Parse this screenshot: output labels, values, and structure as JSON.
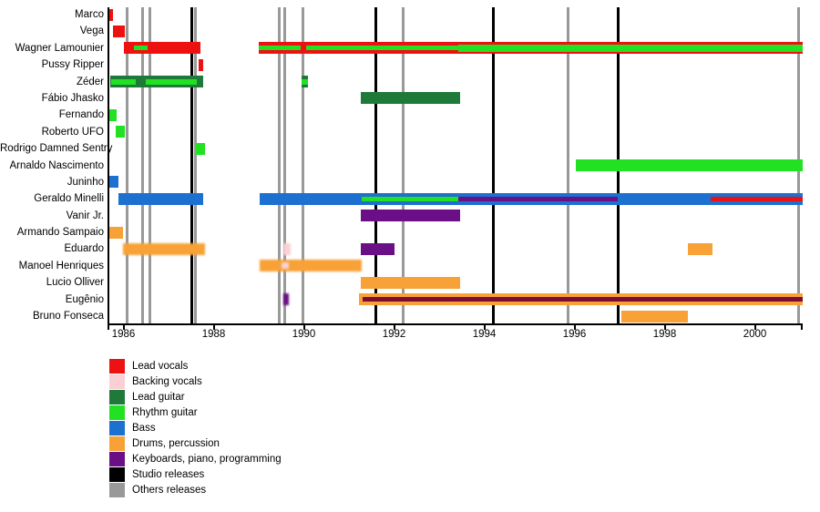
{
  "chart_data": {
    "type": "timeline",
    "x_axis": {
      "tick_years": [
        1986,
        1988,
        1990,
        1992,
        1994,
        1996,
        1998,
        2000
      ],
      "range_start": 1985.67,
      "range_end": 2001.06
    },
    "colors": {
      "red": "#ee1111",
      "pink": "#fbd0d4",
      "green": "#22e022",
      "dgreen": "#1f7a3a",
      "blue": "#1c70d0",
      "orange": "#f7a136",
      "purple": "#6a0f85",
      "maroon": "#7a0c36",
      "studio": "#000000",
      "others": "#999999"
    },
    "legend": [
      {
        "label": "Lead vocals",
        "color": "red"
      },
      {
        "label": "Backing vocals",
        "color": "pink"
      },
      {
        "label": "Lead guitar",
        "color": "dgreen"
      },
      {
        "label": "Rhythm guitar",
        "color": "green"
      },
      {
        "label": "Bass",
        "color": "blue"
      },
      {
        "label": "Drums, percussion",
        "color": "orange"
      },
      {
        "label": "Keyboards, piano, programming",
        "color": "purple"
      },
      {
        "label": "Studio releases",
        "color": "studio"
      },
      {
        "label": "Others releases",
        "color": "others"
      }
    ],
    "releases": {
      "studio": [
        1987.52,
        1991.6,
        1994.2,
        1996.96
      ],
      "others": [
        1986.09,
        1986.43,
        1986.58,
        1987.6,
        1989.45,
        1989.58,
        1989.98,
        1992.2,
        1995.86,
        2000.96
      ]
    },
    "members": [
      {
        "name": "Marco",
        "bars": [
          {
            "start": 1985.67,
            "end": 1985.76,
            "color": "red"
          }
        ]
      },
      {
        "name": "Vega",
        "bars": [
          {
            "start": 1985.77,
            "end": 1986.03,
            "color": "red"
          }
        ]
      },
      {
        "name": "Wagner Lamounier",
        "bars": [
          {
            "start": 1986.0,
            "end": 1987.71,
            "color": "red",
            "stripes": [
              {
                "start": 1986.23,
                "end": 1986.53,
                "color": "green",
                "h": 5
              }
            ]
          },
          {
            "start": 1989.0,
            "end": 2001.06,
            "color": "red",
            "stripes": [
              {
                "start": 1989.0,
                "end": 1989.93,
                "color": "green",
                "h": 5
              },
              {
                "start": 1990.05,
                "end": 1993.42,
                "color": "green",
                "h": 5
              },
              {
                "start": 1993.42,
                "end": 2001.06,
                "color": "green",
                "h": 8
              }
            ]
          }
        ]
      },
      {
        "name": "Pussy Ripper",
        "bars": [
          {
            "start": 1987.67,
            "end": 1987.77,
            "color": "red"
          }
        ]
      },
      {
        "name": "Zéder",
        "bars": [
          {
            "start": 1985.7,
            "end": 1987.77,
            "color": "dgreen",
            "stripes": [
              {
                "start": 1985.72,
                "end": 1986.27,
                "color": "green",
                "h": 6
              },
              {
                "start": 1986.5,
                "end": 1987.62,
                "color": "green",
                "h": 6
              }
            ]
          },
          {
            "start": 1989.95,
            "end": 1990.09,
            "color": "dgreen",
            "stripes": [
              {
                "start": 1989.95,
                "end": 1990.09,
                "color": "green",
                "h": 6
              }
            ]
          }
        ]
      },
      {
        "name": "Fábio Jhasko",
        "bars": [
          {
            "start": 1991.26,
            "end": 1993.46,
            "color": "dgreen"
          }
        ]
      },
      {
        "name": "Fernando",
        "bars": [
          {
            "start": 1985.67,
            "end": 1985.85,
            "color": "green"
          }
        ]
      },
      {
        "name": "Roberto UFO",
        "bars": [
          {
            "start": 1985.83,
            "end": 1986.03,
            "color": "green"
          }
        ]
      },
      {
        "name": "Rodrigo Damned Sentry",
        "bars": [
          {
            "start": 1987.61,
            "end": 1987.81,
            "color": "green"
          }
        ]
      },
      {
        "name": "Arnaldo Nascimento",
        "bars": [
          {
            "start": 1996.03,
            "end": 2001.06,
            "color": "green"
          }
        ]
      },
      {
        "name": "Juninho",
        "bars": [
          {
            "start": 1985.67,
            "end": 1985.89,
            "color": "blue"
          }
        ]
      },
      {
        "name": "Geraldo Minelli",
        "bars": [
          {
            "start": 1985.89,
            "end": 1987.77,
            "color": "blue"
          },
          {
            "start": 1989.02,
            "end": 2001.06,
            "color": "blue",
            "stripes": [
              {
                "start": 1991.28,
                "end": 1993.42,
                "color": "green",
                "h": 5
              },
              {
                "start": 1993.42,
                "end": 1996.96,
                "color": "purple",
                "h": 5
              },
              {
                "start": 1999.02,
                "end": 2001.06,
                "color": "red",
                "h": 5
              }
            ]
          }
        ]
      },
      {
        "name": "Vanir Jr.",
        "bars": [
          {
            "start": 1991.26,
            "end": 1993.46,
            "color": "purple"
          }
        ]
      },
      {
        "name": "Armando Sampaio",
        "bars": [
          {
            "start": 1985.67,
            "end": 1985.99,
            "color": "orange"
          }
        ]
      },
      {
        "name": "Eduardo",
        "bars": [
          {
            "start": 1985.99,
            "end": 1987.81,
            "color": "orange",
            "fuzzy": true
          },
          {
            "start": 1989.55,
            "end": 1989.71,
            "color": "pink",
            "fuzzy": true
          },
          {
            "start": 1991.26,
            "end": 1992.01,
            "color": "purple"
          },
          {
            "start": 1998.52,
            "end": 1999.06,
            "color": "orange"
          }
        ]
      },
      {
        "name": "Manoel Henriques",
        "bars": [
          {
            "start": 1989.02,
            "end": 1991.28,
            "color": "orange",
            "fuzzy": true,
            "stripes": [
              {
                "start": 1989.5,
                "end": 1989.66,
                "color": "pink",
                "h": 7
              }
            ]
          }
        ]
      },
      {
        "name": "Lucio Olliver",
        "bars": [
          {
            "start": 1991.26,
            "end": 1993.46,
            "color": "orange"
          }
        ]
      },
      {
        "name": "Eugênio",
        "bars": [
          {
            "start": 1989.55,
            "end": 1989.67,
            "color": "purple",
            "fuzzy": true
          },
          {
            "start": 1991.22,
            "end": 2001.06,
            "color": "orange",
            "stripes": [
              {
                "start": 1991.3,
                "end": 2001.06,
                "color": "maroon",
                "h": 5
              }
            ]
          }
        ]
      },
      {
        "name": "Bruno Fonseca",
        "bars": [
          {
            "start": 1997.04,
            "end": 1998.52,
            "color": "orange"
          }
        ]
      }
    ]
  }
}
